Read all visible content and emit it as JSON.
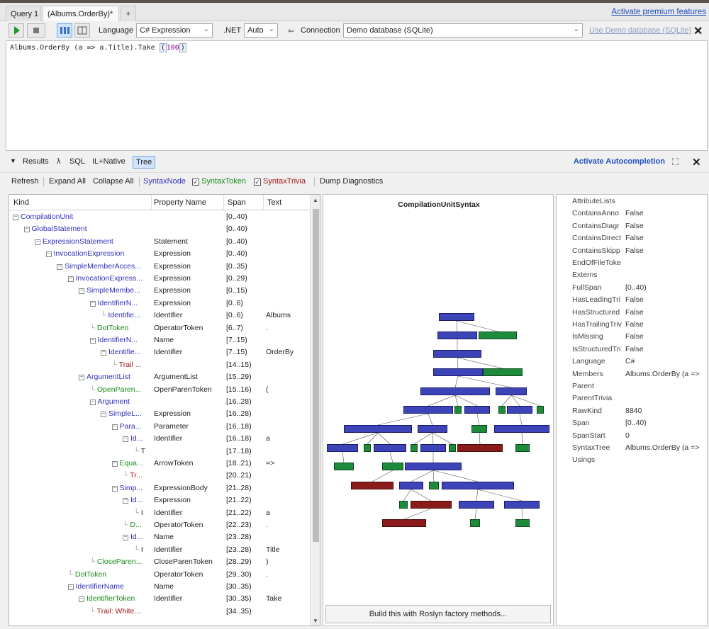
{
  "window": {
    "tabs": [
      "Query 1",
      "(Albums.OrderBy)*",
      "+"
    ],
    "premium_link": "Activate premium features"
  },
  "toolbar": {
    "language_label": "Language",
    "language_value": "C# Expression",
    "net_label": ".NET",
    "net_value": "Auto",
    "connection_label": "Connection",
    "connection_value": "Demo database (SQLite)",
    "use_demo_link": "Use Demo database (SQLite)"
  },
  "editor": {
    "code_prefix": "Albums.OrderBy (a => a.Title).Take ",
    "paren_open": "(",
    "number": "100",
    "paren_close": ")"
  },
  "results_bar": {
    "items": [
      "Results",
      "λ",
      "SQL",
      "IL+Native",
      "Tree"
    ],
    "autocomplete": "Activate Autocompletion"
  },
  "tree_toolbar": {
    "refresh": "Refresh",
    "expand_all": "Expand All",
    "collapse_all": "Collapse All",
    "syntax_node": "SyntaxNode",
    "syntax_token": "SyntaxToken",
    "syntax_trivia": "SyntaxTrivia",
    "dump": "Dump Diagnostics"
  },
  "grid": {
    "headers": [
      "Kind",
      "Property Name",
      "Span",
      "Text"
    ],
    "rows": [
      {
        "kind": "CompilationUnit",
        "prop": "",
        "span": "[0..40)",
        "text": ""
      },
      {
        "kind": "GlobalStatement",
        "prop": "",
        "span": "[0..40)",
        "text": ""
      },
      {
        "kind": "ExpressionStatement",
        "prop": "Statement",
        "span": "[0..40)",
        "text": ""
      },
      {
        "kind": "InvocationExpression",
        "prop": "Expression",
        "span": "[0..40)",
        "text": ""
      },
      {
        "kind": "SimpleMemberAcces...",
        "prop": "Expression",
        "span": "[0..35)",
        "text": ""
      },
      {
        "kind": "InvocationExpress...",
        "prop": "Expression",
        "span": "[0..29)",
        "text": ""
      },
      {
        "kind": "SimpleMembe...",
        "prop": "Expression",
        "span": "[0..15)",
        "text": ""
      },
      {
        "kind": "IdentifierN...",
        "prop": "Expression",
        "span": "[0..6)",
        "text": ""
      },
      {
        "kind": "Identifie...",
        "prop": "Identifier",
        "span": "[0..6)",
        "text": "Albums"
      },
      {
        "kind": "DotToken",
        "prop": "OperatorToken",
        "span": "[6..7)",
        "text": "."
      },
      {
        "kind": "IdentifierN...",
        "prop": "Name",
        "span": "[7..15)",
        "text": ""
      },
      {
        "kind": "Identifie...",
        "prop": "Identifier",
        "span": "[7..15)",
        "text": "OrderBy"
      },
      {
        "kind": "Trail ...",
        "prop": "",
        "span": "[14..15)",
        "text": ""
      },
      {
        "kind": "ArgumentList",
        "prop": "ArgumentList",
        "span": "[15..29)",
        "text": ""
      },
      {
        "kind": "OpenParen...",
        "prop": "OpenParenToken",
        "span": "[15..16)",
        "text": "("
      },
      {
        "kind": "Argument",
        "prop": "",
        "span": "[16..28)",
        "text": ""
      },
      {
        "kind": "SimpleL...",
        "prop": "Expression",
        "span": "[16..28)",
        "text": ""
      },
      {
        "kind": "Para...",
        "prop": "Parameter",
        "span": "[16..18)",
        "text": ""
      },
      {
        "kind": "Id...",
        "prop": "Identifier",
        "span": "[16..18)",
        "text": "a"
      },
      {
        "kind": "T",
        "prop": "",
        "span": "[17..18)",
        "text": ""
      },
      {
        "kind": "Equa...",
        "prop": "ArrowToken",
        "span": "[18..21)",
        "text": "=>"
      },
      {
        "kind": "Tr...",
        "prop": "",
        "span": "[20..21)",
        "text": ""
      },
      {
        "kind": "Simp...",
        "prop": "ExpressionBody",
        "span": "[21..28)",
        "text": ""
      },
      {
        "kind": "Id...",
        "prop": "Expression",
        "span": "[21..22)",
        "text": ""
      },
      {
        "kind": "I",
        "prop": "Identifier",
        "span": "[21..22)",
        "text": "a"
      },
      {
        "kind": "D...",
        "prop": "OperatorToken",
        "span": "[22..23)",
        "text": "."
      },
      {
        "kind": "Id...",
        "prop": "Name",
        "span": "[23..28)",
        "text": ""
      },
      {
        "kind": "I",
        "prop": "Identifier",
        "span": "[23..28)",
        "text": "Title"
      },
      {
        "kind": "CloseParen...",
        "prop": "CloseParenToken",
        "span": "[28..29)",
        "text": ")"
      },
      {
        "kind": "DotToken",
        "prop": "OperatorToken",
        "span": "[29..30)",
        "text": "."
      },
      {
        "kind": "IdentifierName",
        "prop": "Name",
        "span": "[30..35)",
        "text": ""
      },
      {
        "kind": "IdentifierToken",
        "prop": "Identifier",
        "span": "[30..35)",
        "text": "Take"
      },
      {
        "kind": "Trail: White...",
        "prop": "",
        "span": "[34..35)",
        "text": ""
      }
    ]
  },
  "graph": {
    "title": "CompilationUnitSyntax",
    "build_button": "Build this with Roslyn factory methods..."
  },
  "properties": [
    {
      "name": "AttributeLists",
      "value": ""
    },
    {
      "name": "ContainsAnno",
      "value": "False"
    },
    {
      "name": "ContainsDiagr",
      "value": "False"
    },
    {
      "name": "ContainsDirect",
      "value": "False"
    },
    {
      "name": "ContainsSkipp",
      "value": "False"
    },
    {
      "name": "EndOfFileToke",
      "value": ""
    },
    {
      "name": "Externs",
      "value": ""
    },
    {
      "name": "FullSpan",
      "value": "[0..40)"
    },
    {
      "name": "HasLeadingTri",
      "value": "False"
    },
    {
      "name": "HasStructured",
      "value": "False"
    },
    {
      "name": "HasTrailingTriv",
      "value": "False"
    },
    {
      "name": "IsMissing",
      "value": "False"
    },
    {
      "name": "IsStructuredTri",
      "value": "False"
    },
    {
      "name": "Language",
      "value": "C#"
    },
    {
      "name": "Members",
      "value": "Albums.OrderBy (a =>"
    },
    {
      "name": "Parent",
      "value": ""
    },
    {
      "name": "ParentTrivia",
      "value": ""
    },
    {
      "name": "RawKind",
      "value": "8840"
    },
    {
      "name": "Span",
      "value": "[0..40)"
    },
    {
      "name": "SpanStart",
      "value": "0"
    },
    {
      "name": "SyntaxTree",
      "value": "Albums.OrderBy (a =>"
    },
    {
      "name": "Usings",
      "value": ""
    }
  ]
}
